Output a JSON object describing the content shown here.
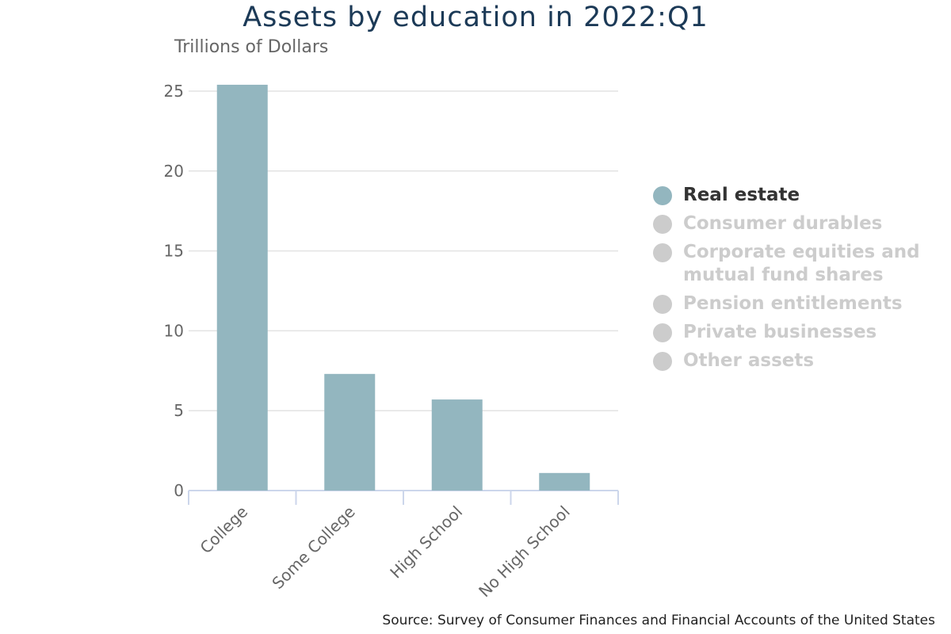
{
  "chart_data": {
    "type": "bar",
    "title": "Assets by education in 2022:Q1",
    "ylabel": "Trillions of Dollars",
    "categories": [
      "College",
      "Some College",
      "High School",
      "No High School"
    ],
    "series": [
      {
        "name": "Real estate",
        "values": [
          25.4,
          7.3,
          5.7,
          1.1
        ],
        "visible": true
      }
    ],
    "ylim": [
      0,
      25
    ],
    "yticks": [
      "0",
      "5",
      "10",
      "15",
      "20",
      "25"
    ],
    "grid": true,
    "legend_position": "right",
    "bar_color": "#93b6bf",
    "legend": [
      {
        "label": "Real estate",
        "active": true
      },
      {
        "label": "Consumer durables",
        "active": false
      },
      {
        "label": "Corporate equities and mutual fund shares",
        "active": false
      },
      {
        "label": "Pension entitlements",
        "active": false
      },
      {
        "label": "Private businesses",
        "active": false
      },
      {
        "label": "Other assets",
        "active": false
      }
    ],
    "source": "Source: Survey of Consumer Finances and Financial Accounts of the United States"
  },
  "colors": {
    "bar": "#93b6bf",
    "legend_active_text": "#333333",
    "legend_inactive": "#cccccc",
    "title": "#1c3a57"
  }
}
